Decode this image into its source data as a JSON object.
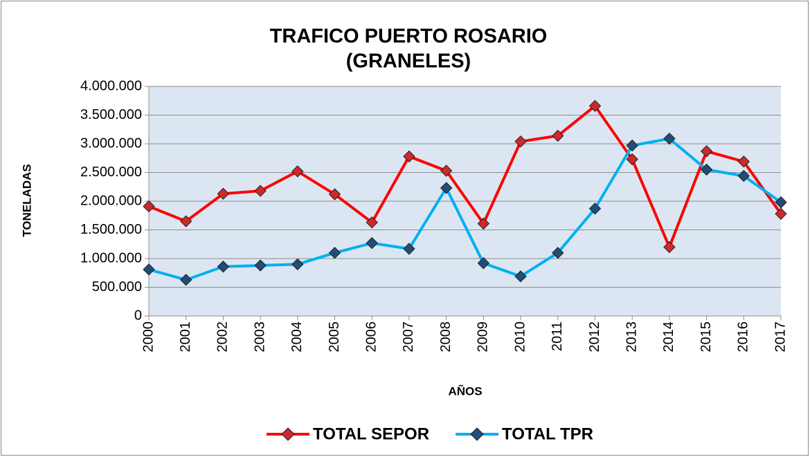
{
  "chart_data": {
    "type": "line",
    "title": [
      "TRAFICO PUERTO ROSARIO",
      "(GRANELES)"
    ],
    "x_label": "AÑOS",
    "y_label": "TONELADAS",
    "categories": [
      "2000",
      "2001",
      "2002",
      "2003",
      "2004",
      "2005",
      "2006",
      "2007",
      "2008",
      "2009",
      "2010",
      "2011",
      "2012",
      "2013",
      "2014",
      "2015",
      "2016",
      "2017"
    ],
    "series": [
      {
        "name": "TOTAL SEPOR",
        "color": "#ff0000",
        "marker_color": "#cc2a2a",
        "values": [
          1910000,
          1650000,
          2130000,
          2180000,
          2520000,
          2120000,
          1630000,
          2780000,
          2530000,
          1610000,
          3040000,
          3140000,
          3660000,
          2730000,
          1200000,
          2870000,
          2690000,
          1780000
        ]
      },
      {
        "name": "TOTAL TPR",
        "color": "#00b0f0",
        "marker_color": "#1f4e79",
        "values": [
          810000,
          630000,
          860000,
          880000,
          900000,
          1100000,
          1270000,
          1170000,
          2230000,
          920000,
          690000,
          1100000,
          1870000,
          2970000,
          3090000,
          2550000,
          2440000,
          1980000
        ]
      }
    ],
    "ylim": [
      0,
      4000000
    ],
    "yticks": [
      0,
      {
        "value": 500000,
        "label": "500.000"
      },
      {
        "value": 1000000,
        "label": "1.000.000"
      },
      {
        "value": 1500000,
        "label": "1.500.000"
      },
      {
        "value": 2000000,
        "label": "2.000.000"
      },
      {
        "value": 2500000,
        "label": "2.500.000"
      },
      {
        "value": 3000000,
        "label": "3.000.000"
      },
      {
        "value": 3500000,
        "label": "3.500.000"
      },
      {
        "value": 4000000,
        "label": "4.000.000"
      }
    ],
    "grid": true,
    "legend": "bottom"
  }
}
